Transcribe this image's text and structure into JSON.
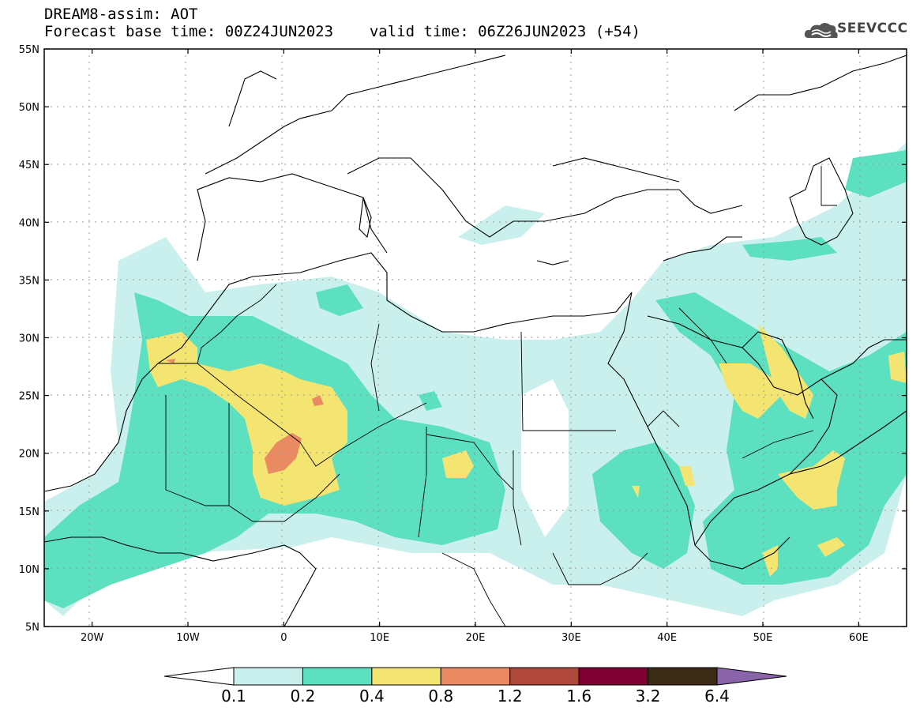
{
  "header": {
    "model_field": "DREAM8-assim: AOT",
    "base_time": "Forecast base time: 00Z24JUN2023",
    "valid_time": "valid time: 06Z26JUN2023 (+54)"
  },
  "logo": {
    "text": "SEEVCCC",
    "icon": "cloud-icon"
  },
  "map": {
    "extent": {
      "lon_min": -25,
      "lon_max": 65,
      "lat_min": 5,
      "lat_max": 55
    },
    "lat_ticks": [
      "5N",
      "10N",
      "15N",
      "20N",
      "25N",
      "30N",
      "35N",
      "40N",
      "45N",
      "50N",
      "55N"
    ],
    "lon_ticks": [
      "20W",
      "10W",
      "0",
      "10E",
      "20E",
      "30E",
      "40E",
      "50E",
      "60E"
    ],
    "grid": true,
    "field": "Aerosol optical thickness"
  },
  "legend": {
    "levels": [
      "0.1",
      "0.2",
      "0.4",
      "0.8",
      "1.2",
      "1.6",
      "3.2",
      "6.4"
    ],
    "colors": [
      "#ffffff",
      "#c9f0ec",
      "#5ce0bf",
      "#f4e573",
      "#ea8a63",
      "#b0473b",
      "#7f0030",
      "#3b2a14",
      "#8a64a8"
    ]
  }
}
